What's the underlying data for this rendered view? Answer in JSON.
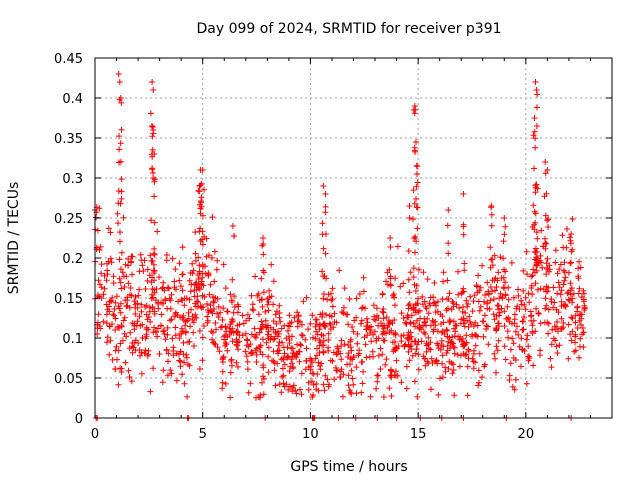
{
  "chart_data": {
    "type": "scatter",
    "title": "Day 099 of 2024, SRMTID for receiver p391",
    "xlabel": "GPS time / hours",
    "ylabel": "SRMTID / TECUs",
    "xlim": [
      0,
      24
    ],
    "ylim": [
      0,
      0.45
    ],
    "xticks": [
      0,
      5,
      10,
      15,
      20
    ],
    "xtick_labels": [
      "0",
      "5",
      "10",
      "15",
      "20"
    ],
    "yticks": [
      0,
      0.05,
      0.1,
      0.15,
      0.2,
      0.25,
      0.3,
      0.35,
      0.4,
      0.45
    ],
    "ytick_labels": [
      "0",
      "0.05",
      "0.1",
      "0.15",
      "0.2",
      "0.25",
      "0.3",
      "0.35",
      "0.4",
      "0.45"
    ],
    "grid": true,
    "marker": "+",
    "series_color": "#ff0000",
    "zero_markers": [
      0.05,
      0.1,
      4.3,
      4.35,
      7.9,
      10.1,
      10.15,
      10.2,
      11.3,
      12.1,
      13.1,
      14.0,
      15.1,
      16.1,
      17.1,
      19.1,
      22.1
    ],
    "peaks": [
      {
        "x": 1.1,
        "y": 0.43
      },
      {
        "x": 1.15,
        "y": 0.42
      },
      {
        "x": 1.2,
        "y": 0.4
      },
      {
        "x": 2.65,
        "y": 0.42
      },
      {
        "x": 2.7,
        "y": 0.41
      },
      {
        "x": 2.7,
        "y": 0.36
      },
      {
        "x": 2.75,
        "y": 0.33
      },
      {
        "x": 4.9,
        "y": 0.31
      },
      {
        "x": 5.0,
        "y": 0.31
      },
      {
        "x": 4.85,
        "y": 0.29
      },
      {
        "x": 10.6,
        "y": 0.29
      },
      {
        "x": 10.7,
        "y": 0.28
      },
      {
        "x": 14.85,
        "y": 0.39
      },
      {
        "x": 14.8,
        "y": 0.385
      },
      {
        "x": 14.9,
        "y": 0.345
      },
      {
        "x": 14.95,
        "y": 0.305
      },
      {
        "x": 17.1,
        "y": 0.28
      },
      {
        "x": 18.4,
        "y": 0.265
      },
      {
        "x": 20.45,
        "y": 0.42
      },
      {
        "x": 20.5,
        "y": 0.41
      },
      {
        "x": 20.4,
        "y": 0.375
      },
      {
        "x": 20.9,
        "y": 0.32
      },
      {
        "x": 21.0,
        "y": 0.31
      },
      {
        "x": 0.0,
        "y": 0.26
      },
      {
        "x": 6.4,
        "y": 0.24
      },
      {
        "x": 7.8,
        "y": 0.225
      },
      {
        "x": 13.7,
        "y": 0.225
      },
      {
        "x": 14.6,
        "y": 0.265
      },
      {
        "x": 16.4,
        "y": 0.26
      },
      {
        "x": 19.0,
        "y": 0.25
      },
      {
        "x": 22.1,
        "y": 0.23
      }
    ],
    "envelope": {
      "x": [
        0,
        0.5,
        1.0,
        1.5,
        2.0,
        2.5,
        3.0,
        3.5,
        4.0,
        4.5,
        5.0,
        5.5,
        6.0,
        6.5,
        7.0,
        7.5,
        8.0,
        8.5,
        9.0,
        9.5,
        10.0,
        10.5,
        11.0,
        11.5,
        12.0,
        12.5,
        13.0,
        13.5,
        14.0,
        14.5,
        15.0,
        15.5,
        16.0,
        16.5,
        17.0,
        17.5,
        18.0,
        18.5,
        19.0,
        19.5,
        20.0,
        20.5,
        21.0,
        21.5,
        22.0,
        22.5,
        22.75
      ],
      "center": [
        0.19,
        0.15,
        0.12,
        0.14,
        0.14,
        0.13,
        0.14,
        0.12,
        0.12,
        0.14,
        0.17,
        0.15,
        0.1,
        0.09,
        0.11,
        0.1,
        0.11,
        0.09,
        0.08,
        0.09,
        0.07,
        0.09,
        0.1,
        0.08,
        0.09,
        0.1,
        0.1,
        0.11,
        0.09,
        0.1,
        0.12,
        0.11,
        0.1,
        0.1,
        0.11,
        0.1,
        0.13,
        0.15,
        0.13,
        0.1,
        0.12,
        0.16,
        0.15,
        0.14,
        0.15,
        0.12,
        0.13
      ],
      "spread": [
        0.05,
        0.06,
        0.05,
        0.05,
        0.05,
        0.05,
        0.05,
        0.05,
        0.05,
        0.05,
        0.06,
        0.05,
        0.05,
        0.04,
        0.04,
        0.05,
        0.05,
        0.04,
        0.04,
        0.04,
        0.04,
        0.04,
        0.05,
        0.04,
        0.04,
        0.04,
        0.04,
        0.04,
        0.05,
        0.04,
        0.04,
        0.04,
        0.04,
        0.04,
        0.04,
        0.04,
        0.05,
        0.05,
        0.05,
        0.04,
        0.05,
        0.06,
        0.05,
        0.05,
        0.05,
        0.04,
        0.02
      ]
    },
    "n_points": 1500
  }
}
